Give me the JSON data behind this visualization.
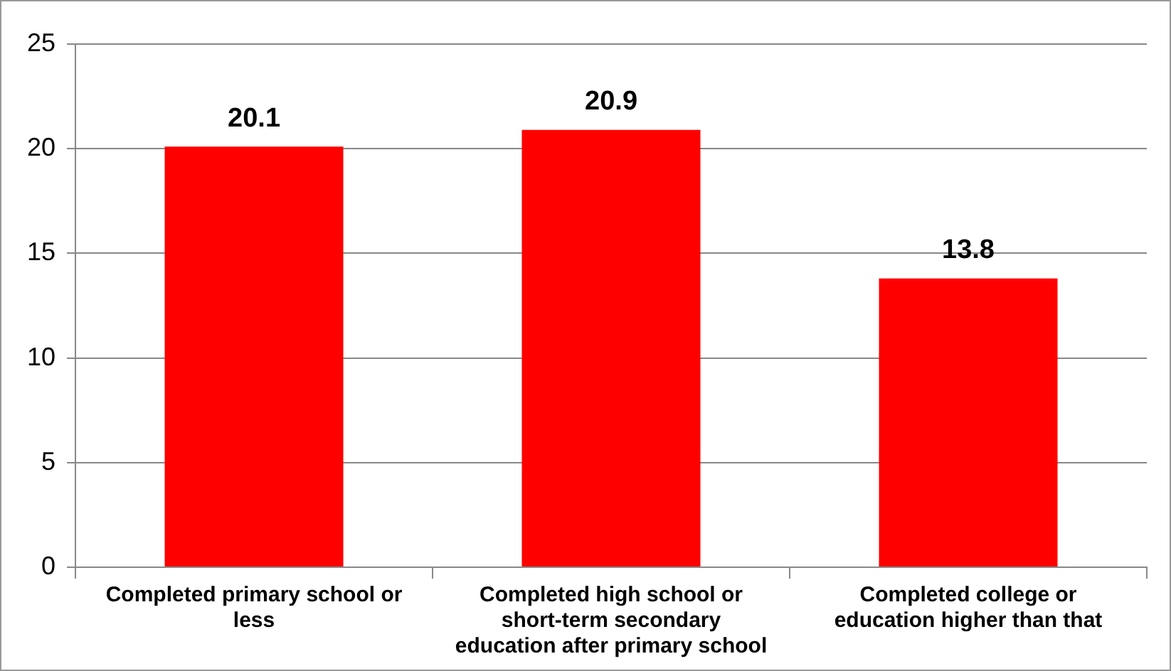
{
  "chart_data": {
    "type": "bar",
    "categories": [
      "Completed primary school or less",
      "Completed high school or short-term secondary education after primary school",
      "Completed college or education higher than that"
    ],
    "values": [
      20.1,
      20.9,
      13.8
    ],
    "color": "#ff0000",
    "ylim": [
      0,
      25
    ],
    "yticks": [
      0,
      5,
      10,
      15,
      20,
      25
    ],
    "grid": "y",
    "data_labels": true
  }
}
